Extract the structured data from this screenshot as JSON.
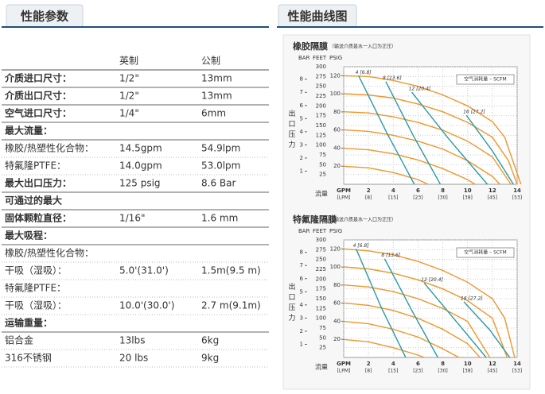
{
  "tabs": [
    "性能参数",
    "性能曲线图"
  ],
  "table": {
    "header": [
      "英制",
      "公制"
    ],
    "rows": [
      {
        "bold": true,
        "cells": [
          "介质进口尺寸：",
          "1/2\"",
          "13mm"
        ]
      },
      {
        "bold": true,
        "cells": [
          "介质出口尺寸：",
          "1/2\"",
          "13mm"
        ]
      },
      {
        "bold": true,
        "cells": [
          "空气进口尺寸：",
          "1/4\"",
          "6mm"
        ]
      },
      {
        "bold": true,
        "cells": [
          "最大流量："
        ]
      },
      {
        "bold": false,
        "cells": [
          "橡胶/热塑性化合物：",
          "14.5gpm",
          "54.9lpm"
        ]
      },
      {
        "bold": false,
        "cells": [
          "特氟隆PTFE：",
          "14.0gpm",
          "53.0lpm"
        ]
      },
      {
        "bold": true,
        "cells": [
          "最大出口压力：",
          "125 psig",
          "8.6 Bar"
        ]
      },
      {
        "bold": true,
        "cells": [
          "可通过的最大"
        ]
      },
      {
        "bold": true,
        "cells": [
          "固体颗粒直径：",
          "1/16\"",
          "1.6 mm"
        ]
      },
      {
        "bold": true,
        "cells": [
          "最大吸程："
        ]
      },
      {
        "bold": false,
        "cells": [
          "橡胶/热塑性化合物："
        ]
      },
      {
        "bold": false,
        "cells": [
          "干吸（湿吸）：",
          "5.0'(31.0')",
          "1.5m(9.5 m)"
        ]
      },
      {
        "bold": false,
        "cells": [
          "特氟隆PTFE："
        ]
      },
      {
        "bold": false,
        "cells": [
          "干吸（湿吸）：",
          "10.0'(30.0')",
          "2.7 m(9.1m)"
        ]
      },
      {
        "bold": true,
        "cells": [
          "运输重量："
        ]
      },
      {
        "bold": false,
        "cells": [
          "铝合金",
          "13lbs",
          "6kg"
        ]
      },
      {
        "bold": false,
        "cells": [
          "316不锈钢",
          "20 lbs",
          "9kg"
        ]
      }
    ]
  },
  "chart_data": [
    {
      "type": "line",
      "title": "橡胶隔膜",
      "subtitle": "（输送介质是水一入口为正压）",
      "ytitle": "出口压力",
      "y_unit": "FEET",
      "y2_unit": "PSIG",
      "y3_unit": "BAR",
      "xlabel": "流量",
      "legend_title": "空气消耗量 – SCFM",
      "grid": true,
      "xlim": [
        0,
        14
      ],
      "xticks": [
        {
          "value": 0,
          "label": "GPM"
        },
        2,
        4,
        6,
        8,
        10,
        12,
        14
      ],
      "x2ticks": [
        {
          "value": 0,
          "label": "[LPM]"
        },
        {
          "value": 2,
          "label": "[8]"
        },
        {
          "value": 4,
          "label": "[15]"
        },
        {
          "value": 6,
          "label": "[23]"
        },
        {
          "value": 8,
          "label": "[30]"
        },
        {
          "value": 10,
          "label": "[38]"
        },
        {
          "value": 12,
          "label": "[45]"
        },
        {
          "value": 14,
          "label": "[53]"
        }
      ],
      "ylim": [
        0,
        300
      ],
      "yticks": [
        25,
        50,
        75,
        100,
        125,
        150,
        175,
        200,
        225,
        250,
        275,
        300
      ],
      "y2lim": [
        0,
        130
      ],
      "y2ticks": [
        20,
        40,
        60,
        80,
        100,
        120
      ],
      "y3lim": [
        0,
        8.95
      ],
      "y3ticks": [
        1,
        2,
        3,
        4,
        5,
        6,
        7,
        8
      ],
      "series": [
        {
          "color": "#f0962a",
          "x": [
            0,
            2,
            4,
            6,
            8,
            10,
            12,
            13,
            14.3
          ],
          "values": [
            277,
            275,
            265,
            250,
            228,
            200,
            160,
            120,
            0
          ]
        },
        {
          "color": "#f0962a",
          "x": [
            0,
            2,
            4,
            6,
            8,
            10,
            12,
            13.3,
            14
          ],
          "values": [
            231,
            228,
            220,
            205,
            185,
            158,
            120,
            60,
            0
          ]
        },
        {
          "color": "#f0962a",
          "x": [
            0,
            2,
            4,
            6,
            8,
            10,
            12,
            13.5
          ],
          "values": [
            185,
            182,
            172,
            158,
            138,
            110,
            70,
            0
          ]
        },
        {
          "color": "#f0962a",
          "x": [
            0,
            2,
            4,
            6,
            8,
            10,
            12,
            12.6
          ],
          "values": [
            139,
            135,
            125,
            110,
            90,
            60,
            20,
            0
          ]
        },
        {
          "color": "#f0962a",
          "x": [
            0,
            2,
            4,
            6,
            8,
            10,
            10.6
          ],
          "values": [
            92,
            88,
            78,
            62,
            40,
            12,
            0
          ]
        },
        {
          "color": "#f0962a",
          "x": [
            0,
            2,
            4,
            6,
            6.8
          ],
          "values": [
            46,
            42,
            30,
            12,
            0
          ]
        },
        {
          "name": "4 [6.8]",
          "color": "#2a9aa6",
          "x": [
            1.2,
            3.5,
            5.7
          ],
          "values": [
            277,
            130,
            0
          ]
        },
        {
          "name": "8 [13.6]",
          "color": "#2a9aa6",
          "x": [
            3.4,
            5.6,
            7.8
          ],
          "values": [
            262,
            125,
            0
          ]
        },
        {
          "name": "12 [20.4]",
          "color": "#2a9aa6",
          "x": [
            5.5,
            8.5,
            11.6
          ],
          "values": [
            235,
            115,
            0
          ]
        },
        {
          "name": "16 [27.2]",
          "color": "#2a9aa6",
          "x": [
            9.9,
            12,
            13.7
          ],
          "values": [
            176,
            85,
            0
          ]
        }
      ]
    },
    {
      "type": "line",
      "title": "特氟隆隔膜",
      "subtitle": "（输送介质是水一入口为正压）",
      "ytitle": "出口压力",
      "y_unit": "FEET",
      "y2_unit": "PSIG",
      "y3_unit": "BAR",
      "xlabel": "流量",
      "legend_title": "空气消耗量 – SCFM",
      "grid": true,
      "xlim": [
        0,
        14
      ],
      "xticks": [
        {
          "value": 0,
          "label": "GPM"
        },
        2,
        4,
        6,
        8,
        10,
        12,
        14
      ],
      "x2ticks": [
        {
          "value": 0,
          "label": "[LPM]"
        },
        {
          "value": 2,
          "label": "[8]"
        },
        {
          "value": 4,
          "label": "[15]"
        },
        {
          "value": 6,
          "label": "[23]"
        },
        {
          "value": 8,
          "label": "[30]"
        },
        {
          "value": 10,
          "label": "[38]"
        },
        {
          "value": 12,
          "label": "[45]"
        },
        {
          "value": 14,
          "label": "[53]"
        }
      ],
      "ylim": [
        0,
        300
      ],
      "yticks": [
        25,
        50,
        75,
        100,
        125,
        150,
        175,
        200,
        225,
        250,
        275,
        300
      ],
      "y2lim": [
        0,
        130
      ],
      "y2ticks": [
        20,
        40,
        60,
        80,
        100,
        120
      ],
      "y3lim": [
        0,
        8.95
      ],
      "y3ticks": [
        1,
        2,
        3,
        4,
        5,
        6,
        7,
        8
      ],
      "series": [
        {
          "color": "#f0962a",
          "x": [
            0,
            2,
            4,
            6,
            8,
            10,
            12,
            13,
            13.8
          ],
          "values": [
            277,
            272,
            262,
            245,
            222,
            192,
            150,
            100,
            0
          ]
        },
        {
          "color": "#f0962a",
          "x": [
            0,
            2,
            4,
            6,
            8,
            10,
            12,
            13.2
          ],
          "values": [
            231,
            226,
            215,
            198,
            175,
            145,
            100,
            0
          ]
        },
        {
          "color": "#f0962a",
          "x": [
            0,
            2,
            4,
            6,
            8,
            10,
            11.8
          ],
          "values": [
            185,
            180,
            168,
            150,
            125,
            92,
            0
          ]
        },
        {
          "color": "#f0962a",
          "x": [
            0,
            2,
            4,
            6,
            8,
            10,
            11
          ],
          "values": [
            139,
            133,
            120,
            100,
            72,
            35,
            0
          ]
        },
        {
          "color": "#f0962a",
          "x": [
            0,
            2,
            4,
            6,
            8,
            9.3
          ],
          "values": [
            92,
            86,
            72,
            52,
            22,
            0
          ]
        },
        {
          "color": "#f0962a",
          "x": [
            0,
            2,
            4,
            6,
            6.5
          ],
          "values": [
            46,
            40,
            25,
            6,
            0
          ]
        },
        {
          "name": "4 [6.8]",
          "color": "#2a9aa6",
          "x": [
            1,
            3,
            5
          ],
          "values": [
            277,
            130,
            0
          ]
        },
        {
          "name": "8 [13.6]",
          "color": "#2a9aa6",
          "x": [
            3.3,
            5.5,
            7.6
          ],
          "values": [
            252,
            120,
            0
          ]
        },
        {
          "name": "12 [20.4]",
          "color": "#2a9aa6",
          "x": [
            6.5,
            9,
            11.5
          ],
          "values": [
            190,
            95,
            0
          ]
        },
        {
          "name": "16 [27.2]",
          "color": "#2a9aa6",
          "x": [
            9.7,
            11.8,
            13.4
          ],
          "values": [
            142,
            70,
            0
          ]
        }
      ]
    }
  ]
}
